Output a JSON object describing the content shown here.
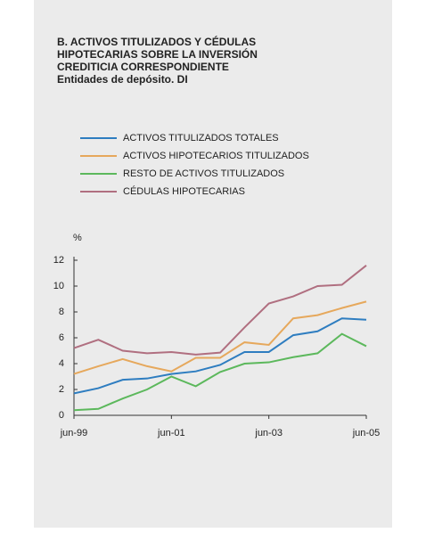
{
  "chart_data": {
    "type": "line",
    "title": [
      "B.  ACTIVOS TITULIZADOS Y CÉDULAS",
      "HIPOTECARIAS SOBRE LA INVERSIÓN",
      "CREDITICIA CORRESPONDIENTE",
      "Entidades de depósito. DI"
    ],
    "y_unit": "%",
    "categories": [
      "jun-99",
      null,
      null,
      null,
      "jun-01",
      null,
      null,
      null,
      "jun-03",
      null,
      null,
      null,
      "jun-05"
    ],
    "series": [
      {
        "name": "ACTIVOS TITULIZADOS TOTALES",
        "color": "#2e7dc0",
        "values": [
          1.7,
          2.1,
          2.75,
          2.85,
          3.2,
          3.4,
          3.9,
          4.9,
          4.9,
          6.2,
          6.5,
          7.5,
          7.4
        ]
      },
      {
        "name": "ACTIVOS HIPOTECARIOS TITULIZADOS",
        "color": "#e6a85c",
        "values": [
          3.2,
          3.8,
          4.35,
          3.8,
          3.4,
          4.45,
          4.45,
          5.65,
          5.45,
          7.5,
          7.75,
          8.3,
          8.8
        ]
      },
      {
        "name": "RESTO DE ACTIVOS TITULIZADOS",
        "color": "#5cb85c",
        "values": [
          0.4,
          0.5,
          1.3,
          2.0,
          3.0,
          2.25,
          3.35,
          4.0,
          4.1,
          4.5,
          4.8,
          6.3,
          5.35
        ]
      },
      {
        "name": "CÉDULAS HIPOTECARIAS",
        "color": "#b06f80",
        "values": [
          5.2,
          5.85,
          5.0,
          4.8,
          4.9,
          4.7,
          4.85,
          6.8,
          8.65,
          9.2,
          10.0,
          10.1,
          11.6
        ]
      }
    ],
    "ylim": [
      0,
      12
    ],
    "yticks": [
      0,
      2,
      4,
      6,
      8,
      10,
      12
    ],
    "grid": false
  }
}
